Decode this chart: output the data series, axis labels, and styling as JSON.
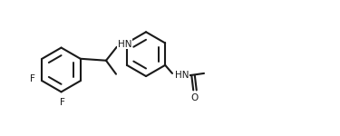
{
  "bg_color": "#ffffff",
  "bond_color": "#1a1a1a",
  "atom_color": "#1a1a1a",
  "lw": 1.5,
  "fs": 7.5,
  "fig_w": 3.75,
  "fig_h": 1.5,
  "dpi": 100,
  "xlim": [
    0.0,
    9.5
  ],
  "ylim": [
    0.5,
    3.8
  ]
}
